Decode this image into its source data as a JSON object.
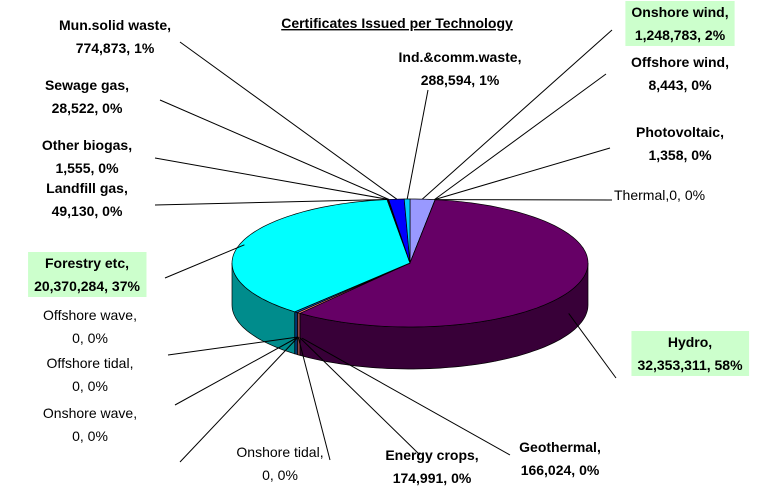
{
  "chart_data": {
    "type": "pie3d",
    "title": "Certificates Issued per Technology",
    "label_separator": ",",
    "categories": [
      "Onshore wind",
      "Offshore wind",
      "Photovoltaic",
      "Thermal",
      "Hydro",
      "Geothermal",
      "Energy crops",
      "Onshore tidal",
      "Onshore wave",
      "Offshore tidal",
      "Offshore wave",
      "Forestry etc",
      "Landfill gas",
      "Other biogas",
      "Sewage gas",
      "Mun.solid waste",
      "Ind.&comm.waste"
    ],
    "values": [
      1248783,
      8443,
      1358,
      0,
      32353311,
      166024,
      174991,
      0,
      0,
      0,
      0,
      20370284,
      49130,
      1555,
      28522,
      774873,
      288594
    ],
    "value_labels": [
      "1,248,783, 2%",
      "8,443, 0%",
      "1,358, 0%",
      "0, 0%",
      "32,353,311, 58%",
      "166,024, 0%",
      "174,991, 0%",
      "0, 0%",
      "0, 0%",
      "0, 0%",
      "0, 0%",
      "20,370,284, 37%",
      "49,130, 0%",
      "1,555, 0%",
      "28,522, 0%",
      "774,873, 1%",
      "288,594, 1%"
    ],
    "colors": [
      "#9999ff",
      "#993366",
      "#ffffcc",
      "#ccffff",
      "#660066",
      "#ff8080",
      "#0066cc",
      "#ccccff",
      "#000080",
      "#ff00ff",
      "#ffff00",
      "#00ffff",
      "#800080",
      "#800000",
      "#008080",
      "#0000ff",
      "#00ccff"
    ]
  }
}
